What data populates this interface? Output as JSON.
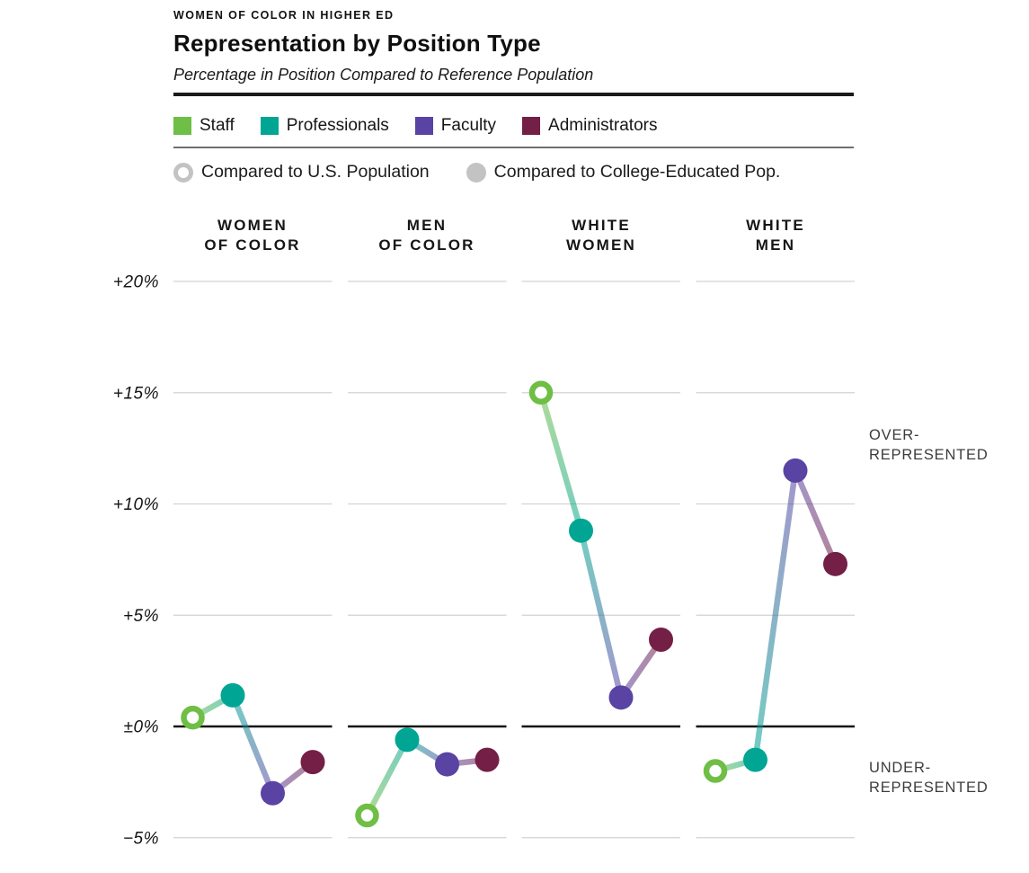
{
  "header": {
    "eyebrow": "WOMEN OF COLOR IN HIGHER ED",
    "title": "Representation by Position Type",
    "subtitle": "Percentage in Position Compared to Reference Population"
  },
  "legend": {
    "series": [
      {
        "label": "Staff",
        "color": "#6fbe45"
      },
      {
        "label": "Professionals",
        "color": "#00a693"
      },
      {
        "label": "Faculty",
        "color": "#5943a3"
      },
      {
        "label": "Administrators",
        "color": "#731f46"
      }
    ],
    "markers": [
      {
        "label": "Compared to U.S. Population",
        "style": "open",
        "color": "#c3c3c3"
      },
      {
        "label": "Compared to College-Educated Pop.",
        "style": "filled",
        "color": "#c3c3c3"
      }
    ]
  },
  "annotations": {
    "over": [
      "OVER-",
      "REPRESENTED"
    ],
    "under": [
      "UNDER-",
      "REPRESENTED"
    ]
  },
  "chart_data": {
    "type": "line",
    "title": "Representation by Position Type",
    "subtitle": "Percentage in Position Compared to Reference Population",
    "y_tick_labels": [
      "+20%",
      "+15%",
      "+10%",
      "+5%",
      "±0%",
      "−5%"
    ],
    "y_tick_values": [
      20,
      15,
      10,
      5,
      0,
      -5
    ],
    "ylim": [
      -6,
      22
    ],
    "grid": true,
    "zero_baseline": true,
    "legend_position": "top",
    "position_types": [
      {
        "name": "Staff",
        "color": "#6fbe45",
        "marker": "open",
        "reference": "U.S. Population"
      },
      {
        "name": "Professionals",
        "color": "#00a693",
        "marker": "filled",
        "reference": "College-Educated Pop."
      },
      {
        "name": "Faculty",
        "color": "#5943a3",
        "marker": "filled",
        "reference": "College-Educated Pop."
      },
      {
        "name": "Administrators",
        "color": "#731f46",
        "marker": "filled",
        "reference": "College-Educated Pop."
      }
    ],
    "groups": [
      {
        "label": "WOMEN OF COLOR",
        "label_lines": [
          "WOMEN",
          "OF COLOR"
        ],
        "values": [
          0.4,
          1.4,
          -3.0,
          -1.6
        ]
      },
      {
        "label": "MEN OF COLOR",
        "label_lines": [
          "MEN",
          "OF COLOR"
        ],
        "values": [
          -4.0,
          -0.6,
          -1.7,
          -1.5
        ]
      },
      {
        "label": "WHITE WOMEN",
        "label_lines": [
          "WHITE",
          "WOMEN"
        ],
        "values": [
          15.0,
          8.8,
          1.3,
          3.9
        ]
      },
      {
        "label": "WHITE MEN",
        "label_lines": [
          "WHITE",
          "MEN"
        ],
        "values": [
          -2.0,
          -1.5,
          11.5,
          7.3
        ]
      }
    ]
  }
}
